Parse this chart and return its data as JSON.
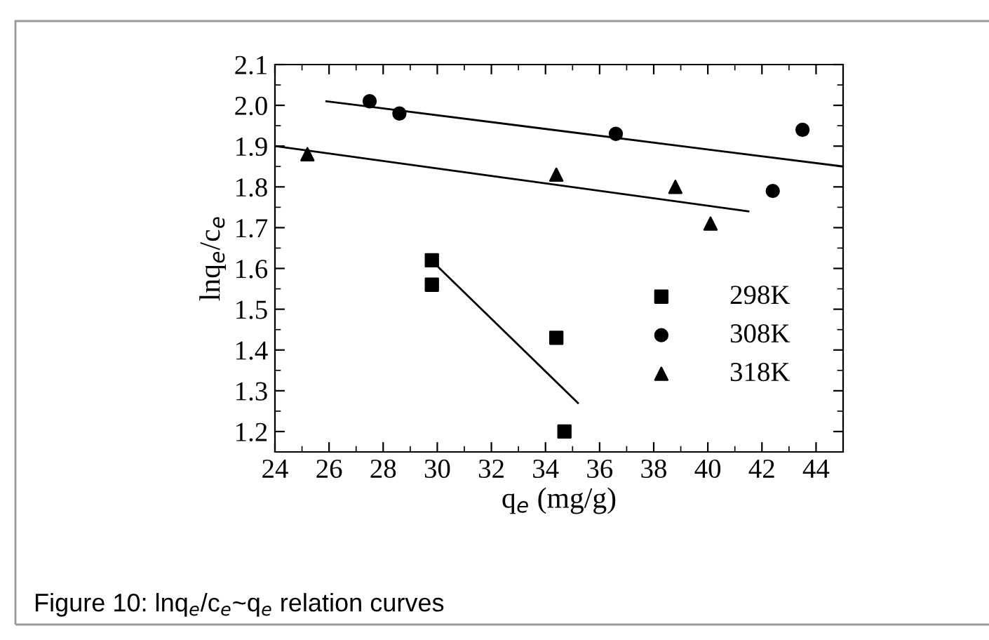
{
  "chart_data": {
    "type": "scatter",
    "xlabel": "q$_{e}$ (mg/g)",
    "ylabel": "lnq$_{e}$/c$_{e}$",
    "annotations": [
      "Figure 10: lnq$_{e}$/c$_{e}$~q$_{e}$ relation curves"
    ],
    "xlim": [
      24,
      45
    ],
    "ylim": [
      1.15,
      2.1
    ],
    "xticks": [
      24,
      26,
      28,
      30,
      32,
      34,
      36,
      38,
      40,
      42,
      44
    ],
    "yticks": [
      {
        "value": 1.2,
        "label": "1.2"
      },
      {
        "value": 1.3,
        "label": "1.3"
      },
      {
        "value": 1.4,
        "label": "1.4"
      },
      {
        "value": 1.5,
        "label": "1.5"
      },
      {
        "value": 1.6,
        "label": "1.6"
      },
      {
        "value": 1.7,
        "label": "1.7"
      },
      {
        "value": 1.8,
        "label": "1.8"
      },
      {
        "value": 1.9,
        "label": "1.9"
      },
      {
        "value": 2.0,
        "label": "2.0"
      },
      {
        "value": 2.1,
        "label": "2.1"
      }
    ],
    "legend": "right",
    "grid": false,
    "series": [
      {
        "name": "298K",
        "color": "#000000",
        "marker": "square",
        "x": [
          29.8,
          29.8,
          34.4,
          34.7
        ],
        "values": [
          1.62,
          1.56,
          1.43,
          1.2
        ]
      },
      {
        "name": "308K",
        "color": "#000000",
        "marker": "circle",
        "x": [
          27.5,
          28.6,
          36.6,
          42.4,
          43.5
        ],
        "values": [
          2.01,
          1.98,
          1.93,
          1.79,
          1.94
        ]
      },
      {
        "name": "318K",
        "color": "#000000",
        "marker": "triangle",
        "x": [
          25.2,
          34.4,
          38.8,
          40.1
        ],
        "values": [
          1.88,
          1.83,
          1.8,
          1.71
        ]
      },
      {
        "type": "line",
        "color": "#000000",
        "marker": "none",
        "line_style": "solid",
        "x": [
          29.7,
          35.2
        ],
        "values": [
          1.625,
          1.27
        ]
      },
      {
        "type": "line",
        "color": "#000000",
        "marker": "none",
        "line_style": "solid",
        "x": [
          25.9,
          45
        ],
        "values": [
          2.01,
          1.85
        ]
      },
      {
        "type": "line",
        "color": "#000000",
        "marker": "none",
        "line_style": "solid",
        "x": [
          24,
          41.5
        ],
        "values": [
          1.9,
          1.74
        ]
      }
    ]
  }
}
